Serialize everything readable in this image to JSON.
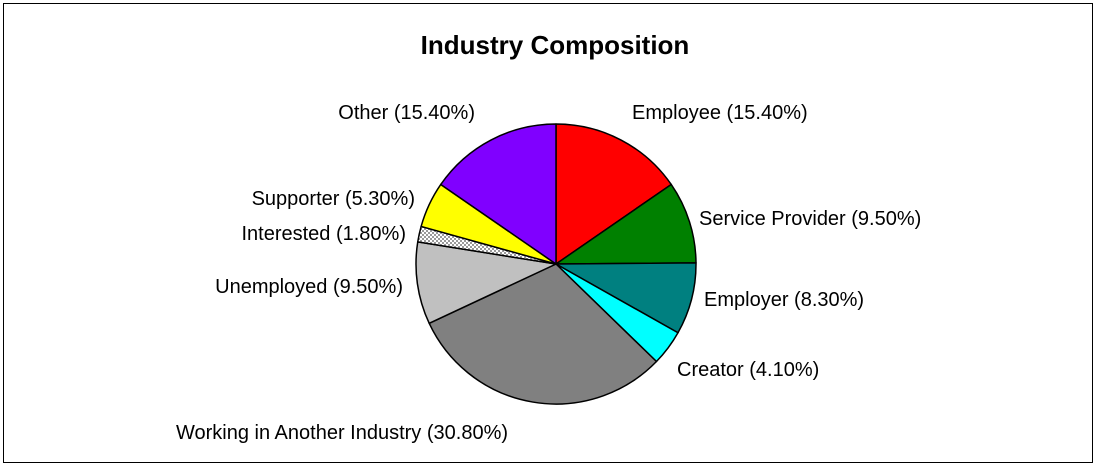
{
  "chart_data": {
    "type": "pie",
    "title": "Industry Composition",
    "slices": [
      {
        "name": "Employee",
        "value": 15.4,
        "label": "Employee (15.40%)",
        "color": "#FF0000"
      },
      {
        "name": "Service Provider",
        "value": 9.5,
        "label": "Service Provider (9.50%)",
        "color": "#008000"
      },
      {
        "name": "Employer",
        "value": 8.3,
        "label": "Employer (8.30%)",
        "color": "#008080"
      },
      {
        "name": "Creator",
        "value": 4.1,
        "label": "Creator (4.10%)",
        "color": "#00FFFF"
      },
      {
        "name": "Working in Another Industry",
        "value": 30.8,
        "label": "Working in Another Industry (30.80%)",
        "color": "#808080"
      },
      {
        "name": "Unemployed",
        "value": 9.5,
        "label": "Unemployed (9.50%)",
        "color": "#C0C0C0"
      },
      {
        "name": "Interested",
        "value": 1.8,
        "label": "Interested (1.80%)",
        "color": "#C8C8C8",
        "pattern": "checker"
      },
      {
        "name": "Supporter",
        "value": 5.3,
        "label": "Supporter (5.30%)",
        "color": "#FFFF00"
      },
      {
        "name": "Other",
        "value": 15.4,
        "label": "Other (15.40%)",
        "color": "#8000FF"
      }
    ],
    "start": "top",
    "direction": "clockwise",
    "data_labels": "outside",
    "legend": "none"
  }
}
